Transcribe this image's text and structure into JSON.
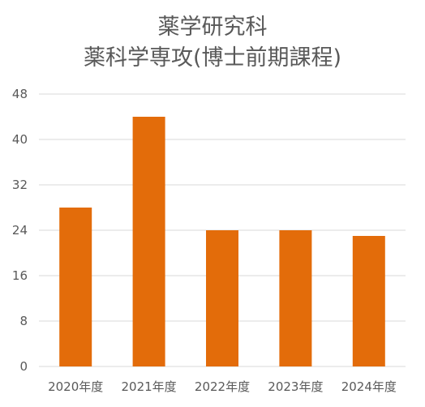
{
  "chart_data": {
    "type": "bar",
    "title_lines": [
      "薬学研究科",
      "薬科学専攻(博士前期課程)"
    ],
    "categories": [
      "2020年度",
      "2021年度",
      "2022年度",
      "2023年度",
      "2024年度"
    ],
    "series": [
      {
        "values": [
          28,
          44,
          24,
          24,
          23
        ]
      }
    ],
    "ylim": [
      0,
      48
    ],
    "yticks": [
      "0",
      "8",
      "16",
      "24",
      "32",
      "40",
      "48"
    ],
    "grid": true,
    "legend": "none",
    "colors": {
      "bar": "#E36C0A",
      "grid": "#D9D9D9",
      "text": "#595959"
    }
  }
}
